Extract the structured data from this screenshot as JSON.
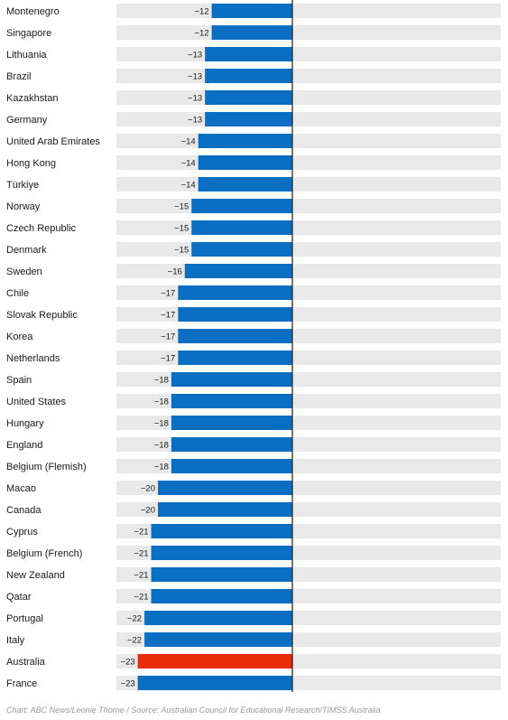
{
  "chart_data": {
    "type": "bar",
    "orientation": "horizontal",
    "categories": [
      "Montenegro",
      "Singapore",
      "Lithuania",
      "Brazil",
      "Kazakhstan",
      "Germany",
      "United Arab Emirates",
      "Hong Kong",
      "Türkiye",
      "Norway",
      "Czech Republic",
      "Denmark",
      "Sweden",
      "Chile",
      "Slovak Republic",
      "Korea",
      "Netherlands",
      "Spain",
      "United States",
      "Hungary",
      "England",
      "Belgium (Flemish)",
      "Macao",
      "Canada",
      "Cyprus",
      "Belgium (French)",
      "New Zealand",
      "Qatar",
      "Portugal",
      "Italy",
      "Australia",
      "France"
    ],
    "values": [
      -12,
      -12,
      -13,
      -13,
      -13,
      -13,
      -14,
      -14,
      -14,
      -15,
      -15,
      -15,
      -16,
      -17,
      -17,
      -17,
      -17,
      -18,
      -18,
      -18,
      -18,
      -18,
      -20,
      -20,
      -21,
      -21,
      -21,
      -21,
      -22,
      -22,
      -23,
      -23
    ],
    "value_labels": [
      "−12",
      "−12",
      "−13",
      "−13",
      "−13",
      "−13",
      "−14",
      "−14",
      "−14",
      "−15",
      "−15",
      "−15",
      "−16",
      "−17",
      "−17",
      "−17",
      "−17",
      "−18",
      "−18",
      "−18",
      "−18",
      "−18",
      "−20",
      "−20",
      "−21",
      "−21",
      "−21",
      "−21",
      "−22",
      "−22",
      "−23",
      "−23"
    ],
    "highlight": "Australia",
    "xlim": [
      -26,
      0
    ],
    "grid": false,
    "colors": {
      "bar": "#0a6fc2",
      "highlight": "#e82c0c",
      "track": "#e9e9e9",
      "axis": "#1e1e1e"
    }
  },
  "credit": "Chart: ABC News/Leonie Thorne / Source: Australian Council for Educational Research/TIMSS Australia"
}
